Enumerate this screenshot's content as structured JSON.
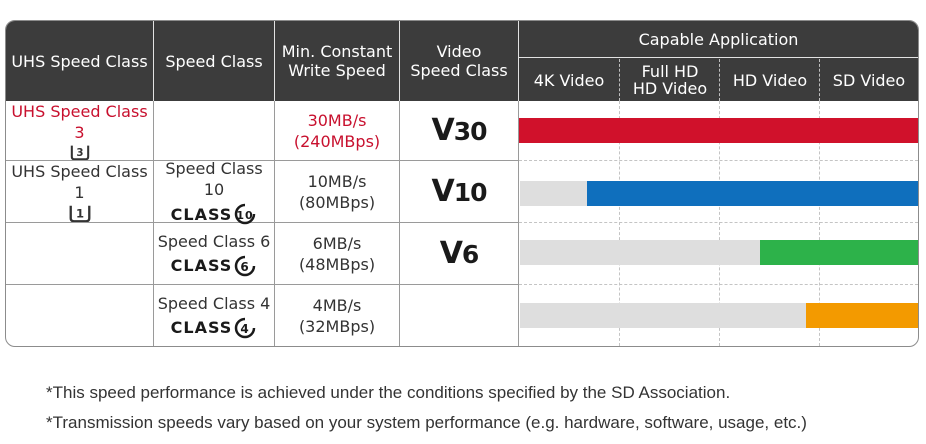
{
  "header": {
    "uhs_speed_class": "UHS Speed Class",
    "speed_class": "Speed Class",
    "min_write_line1": "Min. Constant",
    "min_write_line2": "Write Speed",
    "video_line1": "Video",
    "video_line2": "Speed Class",
    "capable_application": "Capable Application",
    "apps": [
      "4K Video",
      "Full HD",
      "HD Video",
      "HD Video",
      "SD Video"
    ]
  },
  "rows": [
    {
      "uhs": "UHS Speed Class 3",
      "uhs_num": "3",
      "speed_class": "",
      "class_num": "",
      "mbs": "30MB/s",
      "mbps": "(240MBps)",
      "video": "30",
      "bar_color": "#d0112b",
      "bar_level": "4K Video"
    },
    {
      "uhs": "UHS Speed Class 1",
      "uhs_num": "1",
      "speed_class": "Speed Class 10",
      "class_num": "10",
      "mbs": "10MB/s",
      "mbps": "(80MBps)",
      "video": "10",
      "bar_color": "#0f6fbd",
      "bar_level": "Full HD"
    },
    {
      "uhs": "",
      "uhs_num": "",
      "speed_class": "Speed Class 6",
      "class_num": "6",
      "mbs": "6MB/s",
      "mbps": "(48MBps)",
      "video": "6",
      "bar_color": "#2db24a",
      "bar_level": "HD Video"
    },
    {
      "uhs": "",
      "uhs_num": "",
      "speed_class": "Speed Class 4",
      "class_num": "4",
      "mbs": "4MB/s",
      "mbps": "(32MBps)",
      "video": "",
      "bar_color": "#f39a00",
      "bar_level": "SD Video"
    }
  ],
  "logos": {
    "class_text": "CLASS",
    "v_letter": "V"
  },
  "notes": [
    "*This speed performance is achieved under the conditions specified by the SD Association.",
    "*Transmission speeds vary based on your system performance (e.g. hardware, software, usage, etc.)"
  ]
}
